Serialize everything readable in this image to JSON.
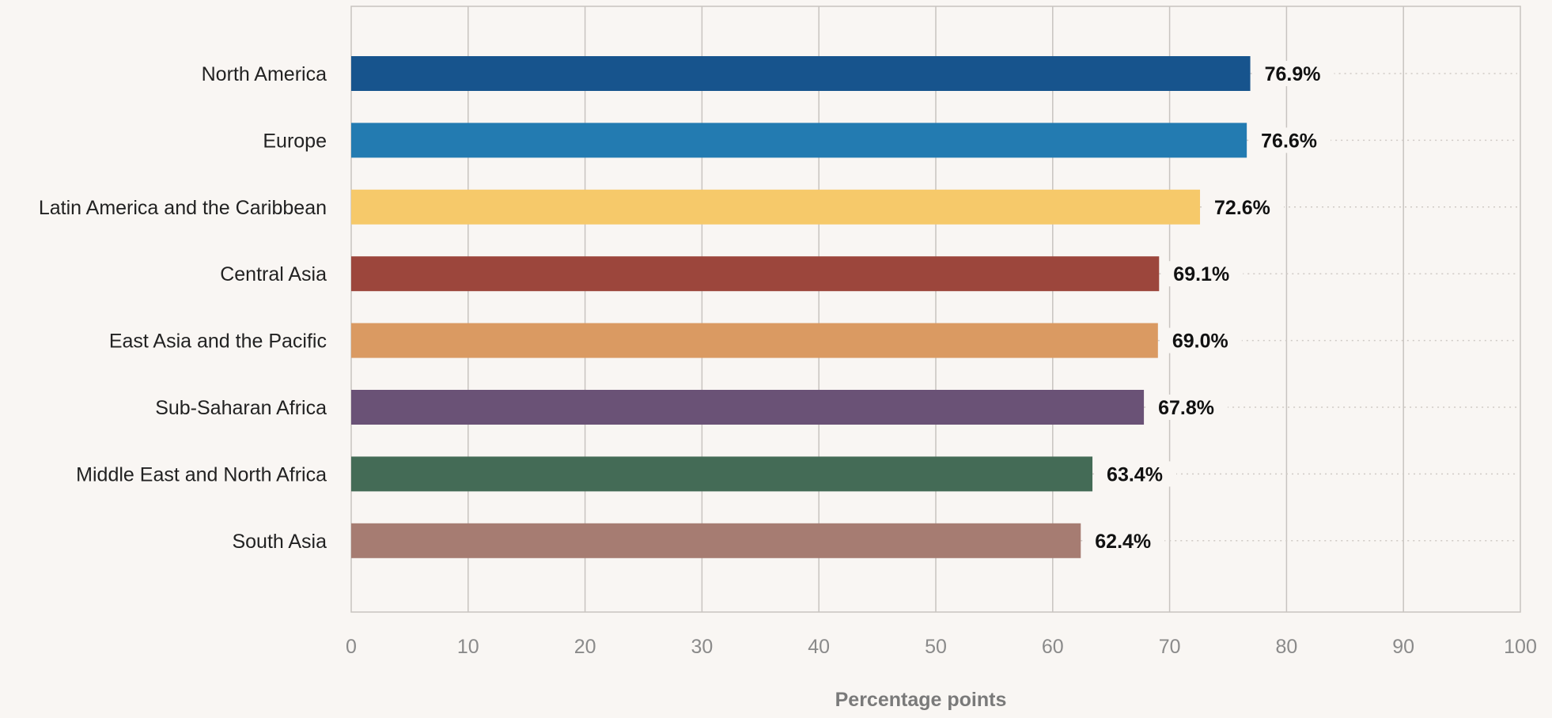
{
  "chart_data": {
    "type": "bar",
    "orientation": "horizontal",
    "categories": [
      "North America",
      "Europe",
      "Latin America and the Caribbean",
      "Central Asia",
      "East Asia and the Pacific",
      "Sub-Saharan Africa",
      "Middle East and North Africa",
      "South Asia"
    ],
    "values": [
      76.9,
      76.6,
      72.6,
      69.1,
      69.0,
      67.8,
      63.4,
      62.4
    ],
    "value_labels": [
      "76.9%",
      "76.6%",
      "72.6%",
      "69.1%",
      "69.0%",
      "67.8%",
      "63.4%",
      "62.4%"
    ],
    "colors": [
      "#17548d",
      "#237bb1",
      "#f6c96a",
      "#9c463c",
      "#da9a62",
      "#6a5276",
      "#446b56",
      "#a67c72"
    ],
    "xlabel": "Percentage points",
    "ylabel": "",
    "xlim": [
      0,
      100
    ],
    "xticks": [
      "0",
      "10",
      "20",
      "30",
      "40",
      "50",
      "60",
      "70",
      "80",
      "90",
      "100"
    ],
    "grid": true,
    "legend": false
  }
}
